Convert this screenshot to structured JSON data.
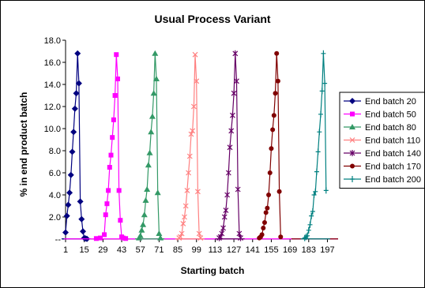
{
  "chart_data": {
    "type": "line",
    "title": "Usual Process Variant",
    "xlabel": "Starting batch",
    "ylabel": "% in end product batch",
    "x_tick_labels": [
      "1",
      "15",
      "29",
      "43",
      "57",
      "71",
      "85",
      "99",
      "113",
      "127",
      "141",
      "155",
      "169",
      "183",
      "197"
    ],
    "x_tick_values": [
      1,
      15,
      29,
      43,
      57,
      71,
      85,
      99,
      113,
      127,
      141,
      155,
      169,
      183,
      197
    ],
    "xlim": [
      1,
      205
    ],
    "y_tick_labels": [
      "--",
      "2.0",
      "4.0",
      "6.0",
      "8.0",
      "10.0",
      "12.0",
      "14.0",
      "16.0",
      "18.0"
    ],
    "y_tick_values": [
      0,
      2,
      4,
      6,
      8,
      10,
      12,
      14,
      16,
      18
    ],
    "ylim": [
      0,
      18
    ],
    "grid": false,
    "legend_position": "right",
    "series": [
      {
        "name": "End batch 20",
        "color": "#000080",
        "marker": "diamond",
        "x": [
          1,
          2,
          3,
          4,
          5,
          6,
          7,
          8,
          9,
          10,
          11,
          12,
          13,
          14,
          15,
          16,
          17
        ],
        "y": [
          0.6,
          2.1,
          3.1,
          4.2,
          5.8,
          7.9,
          9.7,
          11.8,
          13.2,
          16.8,
          14.1,
          3.4,
          1.8,
          0.7,
          0.1,
          0.05,
          0.02
        ]
      },
      {
        "name": "End batch 50",
        "color": "#ff00ff",
        "marker": "square",
        "x": [
          24,
          27,
          30,
          31,
          32,
          33,
          34,
          35,
          36,
          37,
          38,
          39,
          40,
          41,
          42,
          43,
          44,
          46
        ],
        "y": [
          0.05,
          0.1,
          0.4,
          2.2,
          3.2,
          4.4,
          6.5,
          7.6,
          9.2,
          10.8,
          13.0,
          16.7,
          14.5,
          4.4,
          1.7,
          0.2,
          0.1,
          0.05
        ],
        "baseline_from": 0,
        "baseline_to": 205
      },
      {
        "name": "End batch 80",
        "color": "#339966",
        "marker": "triangle",
        "x": [
          56,
          57,
          58,
          59,
          60,
          61,
          62,
          63,
          64,
          65,
          66,
          67,
          68,
          69,
          70,
          71,
          72
        ],
        "y": [
          0.1,
          0.3,
          0.8,
          1.3,
          2.2,
          3.5,
          4.5,
          6.7,
          7.8,
          9.7,
          11.1,
          13.2,
          16.8,
          14.5,
          4.2,
          0.5,
          0.1
        ]
      },
      {
        "name": "End batch 110",
        "color": "#ff8080",
        "marker": "x",
        "x": [
          86,
          87,
          88,
          89,
          90,
          91,
          92,
          93,
          94,
          95,
          96,
          97,
          98,
          99,
          100,
          101,
          102
        ],
        "y": [
          0.1,
          0.2,
          0.5,
          1.4,
          2.0,
          3.0,
          4.4,
          6.0,
          7.5,
          9.5,
          9.8,
          12.0,
          16.7,
          14.3,
          4.3,
          0.5,
          0.1
        ]
      },
      {
        "name": "End batch 140",
        "color": "#660066",
        "marker": "star",
        "x": [
          116,
          117,
          118,
          119,
          120,
          121,
          122,
          123,
          124,
          125,
          126,
          127,
          128,
          129,
          130,
          131,
          132
        ],
        "y": [
          0.1,
          0.2,
          0.5,
          1.0,
          2.0,
          2.6,
          4.0,
          6.0,
          8.3,
          9.8,
          11.2,
          13.2,
          16.8,
          14.3,
          4.5,
          0.5,
          0.1
        ]
      },
      {
        "name": "End batch 170",
        "color": "#800000",
        "marker": "circle",
        "x": [
          146,
          147,
          148,
          149,
          150,
          151,
          152,
          153,
          154,
          155,
          156,
          157,
          158,
          159,
          160,
          161,
          162
        ],
        "y": [
          0.1,
          0.2,
          0.4,
          1.0,
          1.5,
          2.4,
          2.8,
          4.0,
          6.0,
          8.2,
          9.9,
          11.2,
          13.2,
          16.8,
          14.3,
          4.3,
          0.2
        ],
        "baseline_from": 170,
        "baseline_to": 205
      },
      {
        "name": "End batch 200",
        "color": "#008080",
        "marker": "plus",
        "x": [
          180,
          181,
          182,
          183,
          184,
          185,
          186,
          187,
          188,
          189,
          190,
          191,
          192,
          193,
          194,
          195,
          196
        ],
        "y": [
          0.1,
          0.2,
          0.3,
          0.8,
          1.3,
          2.1,
          2.5,
          4.0,
          4.3,
          6.1,
          7.9,
          9.7,
          11.3,
          13.4,
          16.8,
          14.1,
          4.4
        ]
      }
    ]
  }
}
